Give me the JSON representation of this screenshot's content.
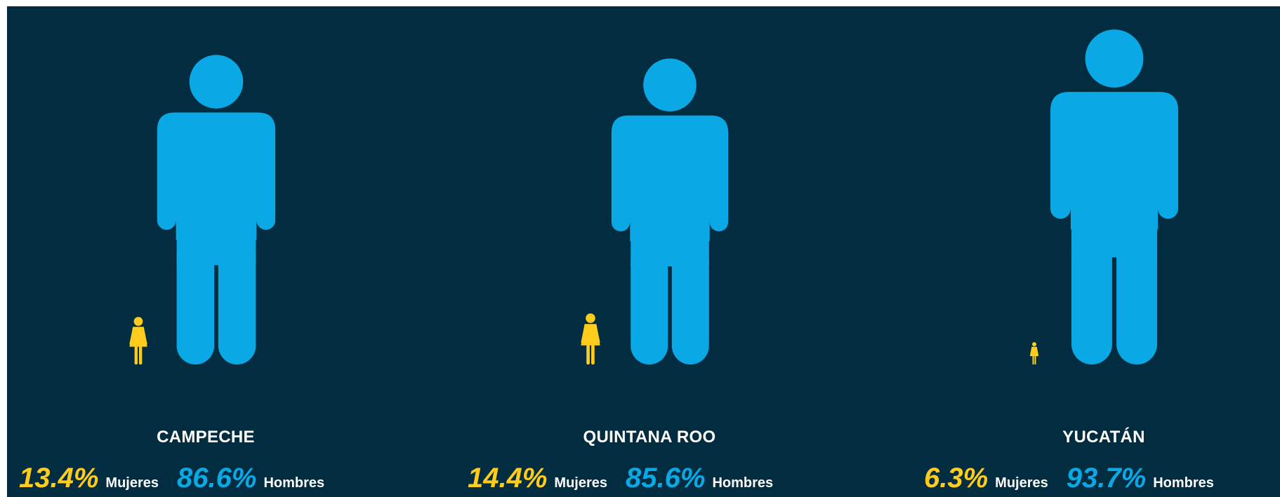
{
  "chart_data": {
    "type": "pictogram",
    "categories": [
      "CAMPECHE",
      "QUINTANA ROO",
      "YUCATÁN"
    ],
    "series": [
      {
        "name": "Mujeres",
        "values": [
          13.4,
          14.4,
          6.3
        ]
      },
      {
        "name": "Hombres",
        "values": [
          86.6,
          85.6,
          93.7
        ]
      }
    ],
    "colors": {
      "Mujeres": "#ffcc1d",
      "Hombres": "#0aa9e5",
      "background": "#022d41"
    }
  },
  "states": [
    {
      "name": "CAMPECHE",
      "women_pct": "13.4%",
      "women_label": "Mujeres",
      "men_pct": "86.6%",
      "men_label": "Hombres"
    },
    {
      "name": "QUINTANA ROO",
      "women_pct": "14.4%",
      "women_label": "Mujeres",
      "men_pct": "85.6%",
      "men_label": "Hombres"
    },
    {
      "name": "YUCATÁN",
      "women_pct": "6.3%",
      "women_label": "Mujeres",
      "men_pct": "93.7%",
      "men_label": "Hombres"
    }
  ]
}
